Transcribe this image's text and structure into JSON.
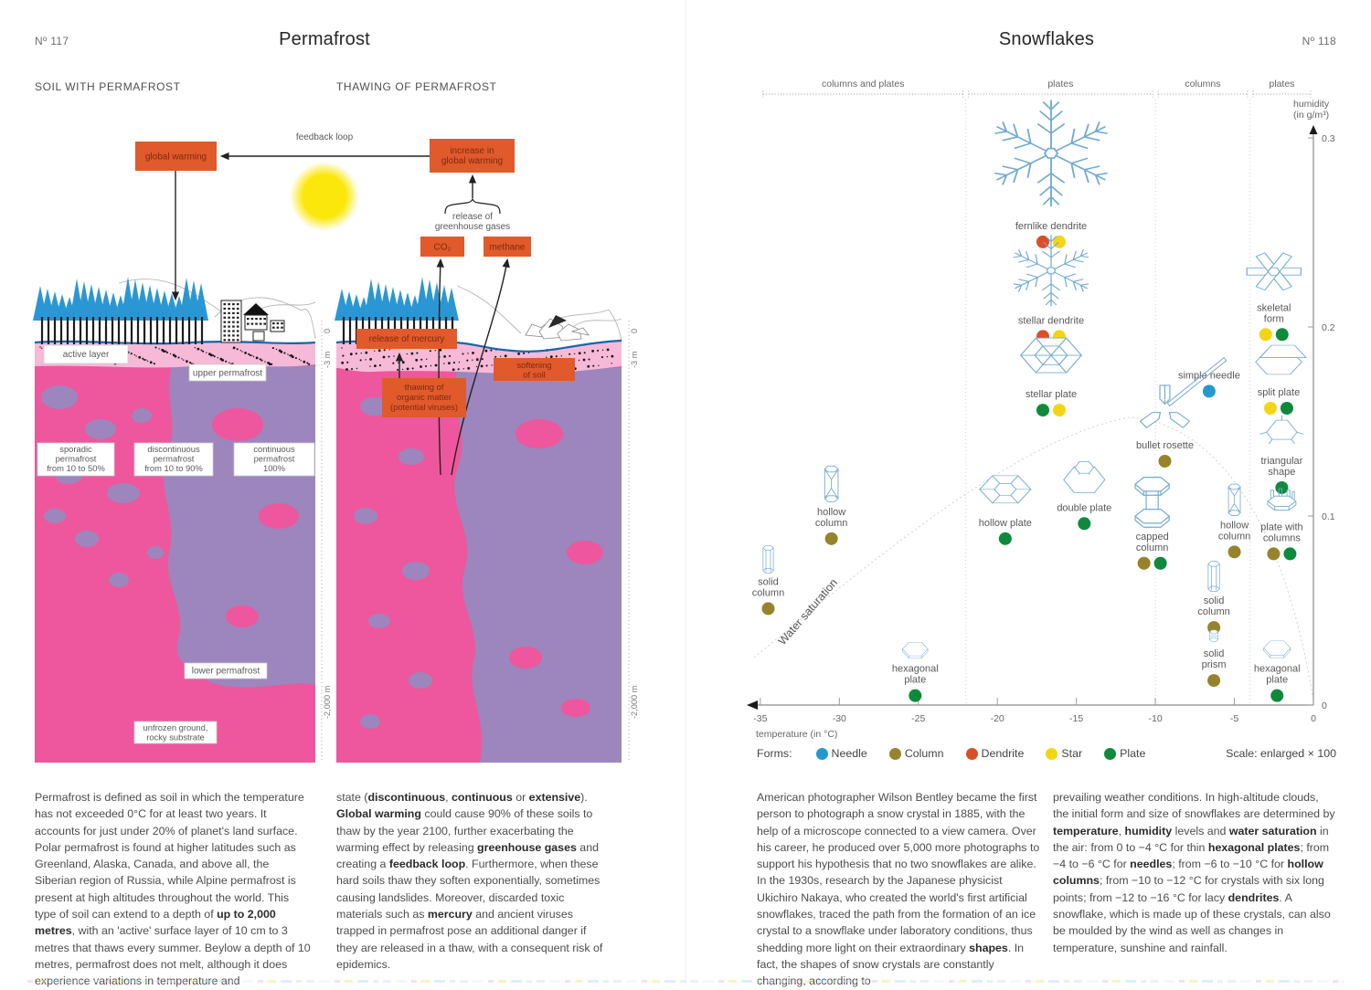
{
  "palette": {
    "pink": "#ee579d",
    "light_pink": "#f6b9d8",
    "purple": "#9c86bd",
    "orange": "#e05a2b",
    "tree_blue": "#2a97d4",
    "surface_blue": "#1766a8",
    "sun_yellow": "#fbe70c"
  },
  "left_page": {
    "number": "Nº 117",
    "title": "Permafrost",
    "section_left": "SOIL WITH PERMAFROST",
    "section_right": "THAWING OF PERMAFROST",
    "diagram": {
      "boxes": {
        "global_warming": [
          "global warming"
        ],
        "increase": [
          "increase in",
          "global warming"
        ],
        "co2": [
          "CO₂"
        ],
        "methane": [
          "methane"
        ],
        "release_mercury": [
          "release of mercury"
        ],
        "thawing_organic": [
          "thawing of",
          "organic matter",
          "(potential viruses)"
        ],
        "softening": [
          "softening",
          "of soil"
        ]
      },
      "labels": {
        "feedback": "feedback loop",
        "release_gases": [
          "release of",
          "greenhouse gases"
        ],
        "active_layer": [
          "active layer"
        ],
        "upper_permafrost": [
          "upper permafrost"
        ],
        "sporadic": [
          "sporadic",
          "permafrost",
          "from 10 to 50%"
        ],
        "discontinuous": [
          "discontinuous",
          "permafrost",
          "from 10 to 90%"
        ],
        "continuous": [
          "continuous",
          "permafrost",
          "100%"
        ],
        "lower_permafrost": [
          "lower permafrost"
        ],
        "unfrozen": [
          "unfrozen ground,",
          "rocky substrate"
        ]
      },
      "depth_axis": {
        "zero": "0",
        "minus3": "-3 m",
        "minus2000": "-2,000 m"
      }
    },
    "body1": [
      {
        "t": "Permafrost is defined as soil in which the temperature has not exceeded 0°C for at least two years. It accounts for just under 20% of planet's land surface. Polar permafrost is found at higher latitudes such as Greenland, Alaska, Canada, and above all, the Siberian region of Russia, while Alpine permafrost is present at high altitudes throughout the world. This type of soil can extend to a depth of "
      },
      {
        "t": "up to 2,000 metres",
        "b": 1
      },
      {
        "t": ", with an 'active' surface layer of 10 cm to 3 metres that thaws every summer. Beylow a depth of 10 metres, permafrost does not melt, although it does experience variations in temperature and"
      }
    ],
    "body2": [
      {
        "t": "state ("
      },
      {
        "t": "discontinuous",
        "b": 1
      },
      {
        "t": ", "
      },
      {
        "t": "continuous",
        "b": 1
      },
      {
        "t": " or "
      },
      {
        "t": "extensive",
        "b": 1
      },
      {
        "t": "). "
      },
      {
        "t": "Global warming",
        "b": 1
      },
      {
        "t": " could cause 90% of these soils to thaw by the year 2100, further exacerbating the warming effect by releasing "
      },
      {
        "t": "greenhouse gases",
        "b": 1
      },
      {
        "t": " and creating a "
      },
      {
        "t": "feedback loop",
        "b": 1
      },
      {
        "t": ". Furthermore, when these hard soils thaw they soften exponentially, sometimes causing landslides. Moreover, discarded toxic materials such as "
      },
      {
        "t": "mercury",
        "b": 1
      },
      {
        "t": " and ancient viruses trapped in permafrost pose an additional danger if they are released in a thaw, with a consequent risk of epidemics."
      }
    ]
  },
  "right_page": {
    "number": "Nº 118",
    "title": "Snowflakes",
    "body1": [
      {
        "t": "American photographer Wilson Bentley became the first person to photograph a snow crystal in 1885, with the help of a microscope connected to a view camera. Over his career, he produced over 5,000 more photographs to support his hypothesis that no two snowflakes are alike. In the 1930s, research by the Japanese physicist Ukichiro Nakaya, who created the world's first artificial snowflakes, traced the path from the formation of an ice crystal to a snowflake under laboratory conditions, thus shedding more light on their extraordinary "
      },
      {
        "t": "shapes",
        "b": 1
      },
      {
        "t": ". In fact, the shapes of snow crystals are constantly changing, according to"
      }
    ],
    "body2": [
      {
        "t": "prevailing weather conditions. In high-altitude clouds, the initial form and size of snowflakes are determined by "
      },
      {
        "t": "temperature",
        "b": 1
      },
      {
        "t": ", "
      },
      {
        "t": "humidity",
        "b": 1
      },
      {
        "t": " levels and "
      },
      {
        "t": "water saturation",
        "b": 1
      },
      {
        "t": " in the air: from 0 to −4 °C for thin "
      },
      {
        "t": "hexagonal plates",
        "b": 1
      },
      {
        "t": "; from −4 to −6 °C for "
      },
      {
        "t": "needles",
        "b": 1
      },
      {
        "t": "; from −6 to −10 °C for "
      },
      {
        "t": "hollow columns",
        "b": 1
      },
      {
        "t": "; from −10 to −12 °C for crystals with six long points; from −12 to −16 °C for lacy "
      },
      {
        "t": "dendrites",
        "b": 1
      },
      {
        "t": ". A snowflake, which is made up of these crystals, can also be moulded by the wind as well as changes in temperature, sunshine and rainfall."
      }
    ]
  },
  "chart_data": {
    "type": "scatter",
    "title": "Snowflakes",
    "xlabel": "temperature (in °C)",
    "ylabel_lines": [
      "humidity",
      "(in g/m³)"
    ],
    "xlim": [
      -35,
      0
    ],
    "ylim": [
      0,
      0.3
    ],
    "x_ticks": [
      -35,
      -30,
      -25,
      -20,
      -15,
      -10,
      -5,
      0
    ],
    "y_ticks": [
      0,
      0.1,
      0.2,
      0.3
    ],
    "grid": false,
    "annotation": "Water saturation",
    "regions": [
      {
        "label": "columns and plates",
        "range": [
          -35,
          -22
        ]
      },
      {
        "label": "plates",
        "range": [
          -22,
          -10
        ]
      },
      {
        "label": "columns",
        "range": [
          -10,
          -4
        ]
      },
      {
        "label": "plates",
        "range": [
          -4,
          0
        ]
      }
    ],
    "legend": {
      "title": "Forms:",
      "position": "bottom-left",
      "entries": [
        {
          "label": "Needle",
          "form": "needle"
        },
        {
          "label": "Column",
          "form": "column"
        },
        {
          "label": "Dendrite",
          "form": "dendrite"
        },
        {
          "label": "Star",
          "form": "star"
        },
        {
          "label": "Plate",
          "form": "plate"
        }
      ],
      "colors": {
        "needle": "#2499cf",
        "column": "#97832b",
        "dendrite": "#da4f28",
        "star": "#f3d515",
        "plate": "#0f8a3d"
      }
    },
    "scale_note": "Scale: enlarged × 100",
    "points": [
      {
        "icon": "dendrite",
        "label": [
          "fernlike dendrite"
        ],
        "t": -16.6,
        "h": 0.245,
        "forms": [
          "dendrite",
          "star"
        ],
        "size": 150
      },
      {
        "icon": "dendrite",
        "label": [
          "stellar dendrite"
        ],
        "t": -16.6,
        "h": 0.195,
        "forms": [
          "dendrite",
          "star"
        ],
        "size": 100
      },
      {
        "icon": "stellar-plate",
        "label": [
          "stellar plate"
        ],
        "t": -16.6,
        "h": 0.156,
        "forms": [
          "plate",
          "star"
        ],
        "size": 76
      },
      {
        "icon": "skeletal",
        "label": [
          "skeletal",
          "form"
        ],
        "t": -2.5,
        "h": 0.196,
        "forms": [
          "star",
          "plate"
        ],
        "size": 70
      },
      {
        "icon": "needle",
        "label": [
          "simple needle"
        ],
        "t": -6.6,
        "h": 0.166,
        "forms": [
          "needle"
        ],
        "size": 72,
        "dx": -14,
        "dy": 46
      },
      {
        "icon": "split-plate",
        "label": [
          "split plate"
        ],
        "t": -2.2,
        "h": 0.157,
        "forms": [
          "star",
          "plate"
        ],
        "size": 62
      },
      {
        "icon": "bullet-rosette",
        "label": [
          "bullet rosette"
        ],
        "t": -9.4,
        "h": 0.129,
        "forms": [
          "column"
        ],
        "size": 70
      },
      {
        "icon": "triangular",
        "label": [
          "triangular",
          "shape"
        ],
        "t": -2.0,
        "h": 0.115,
        "forms": [
          "plate"
        ],
        "size": 56
      },
      {
        "icon": "hollow-column",
        "label": [
          "hollow",
          "column"
        ],
        "t": -30.5,
        "h": 0.088,
        "forms": [
          "column"
        ],
        "size": 52
      },
      {
        "icon": "hollow-plate",
        "label": [
          "hollow plate"
        ],
        "t": -19.5,
        "h": 0.088,
        "forms": [
          "plate"
        ],
        "size": 64
      },
      {
        "icon": "double-plate",
        "label": [
          "double plate"
        ],
        "t": -14.5,
        "h": 0.096,
        "forms": [
          "plate"
        ],
        "size": 60
      },
      {
        "icon": "capped-column",
        "label": [
          "capped",
          "column"
        ],
        "t": -10.2,
        "h": 0.075,
        "forms": [
          "column",
          "plate"
        ],
        "size": 70
      },
      {
        "icon": "hollow-column",
        "label": [
          "hollow",
          "column"
        ],
        "t": -5.0,
        "h": 0.081,
        "forms": [
          "column"
        ],
        "size": 46
      },
      {
        "icon": "plate-with-columns",
        "label": [
          "plate with",
          "columns"
        ],
        "t": -2.0,
        "h": 0.08,
        "forms": [
          "column",
          "plate"
        ],
        "size": 52
      },
      {
        "icon": "solid-column",
        "label": [
          "solid",
          "column"
        ],
        "t": -34.5,
        "h": 0.051,
        "forms": [
          "column"
        ],
        "size": 40
      },
      {
        "icon": "solid-column",
        "label": [
          "solid",
          "column"
        ],
        "t": -6.3,
        "h": 0.041,
        "forms": [
          "column"
        ],
        "size": 44
      },
      {
        "icon": "solid-prism",
        "label": [
          "solid",
          "prism"
        ],
        "t": -6.3,
        "h": 0.013,
        "forms": [
          "column"
        ],
        "size": 30
      },
      {
        "icon": "hex-plate",
        "label": [
          "hexagonal",
          "plate"
        ],
        "t": -25.2,
        "h": 0.005,
        "forms": [
          "plate"
        ],
        "size": 34
      },
      {
        "icon": "hex-plate",
        "label": [
          "hexagonal",
          "plate"
        ],
        "t": -2.3,
        "h": 0.005,
        "forms": [
          "plate"
        ],
        "size": 36
      }
    ]
  }
}
